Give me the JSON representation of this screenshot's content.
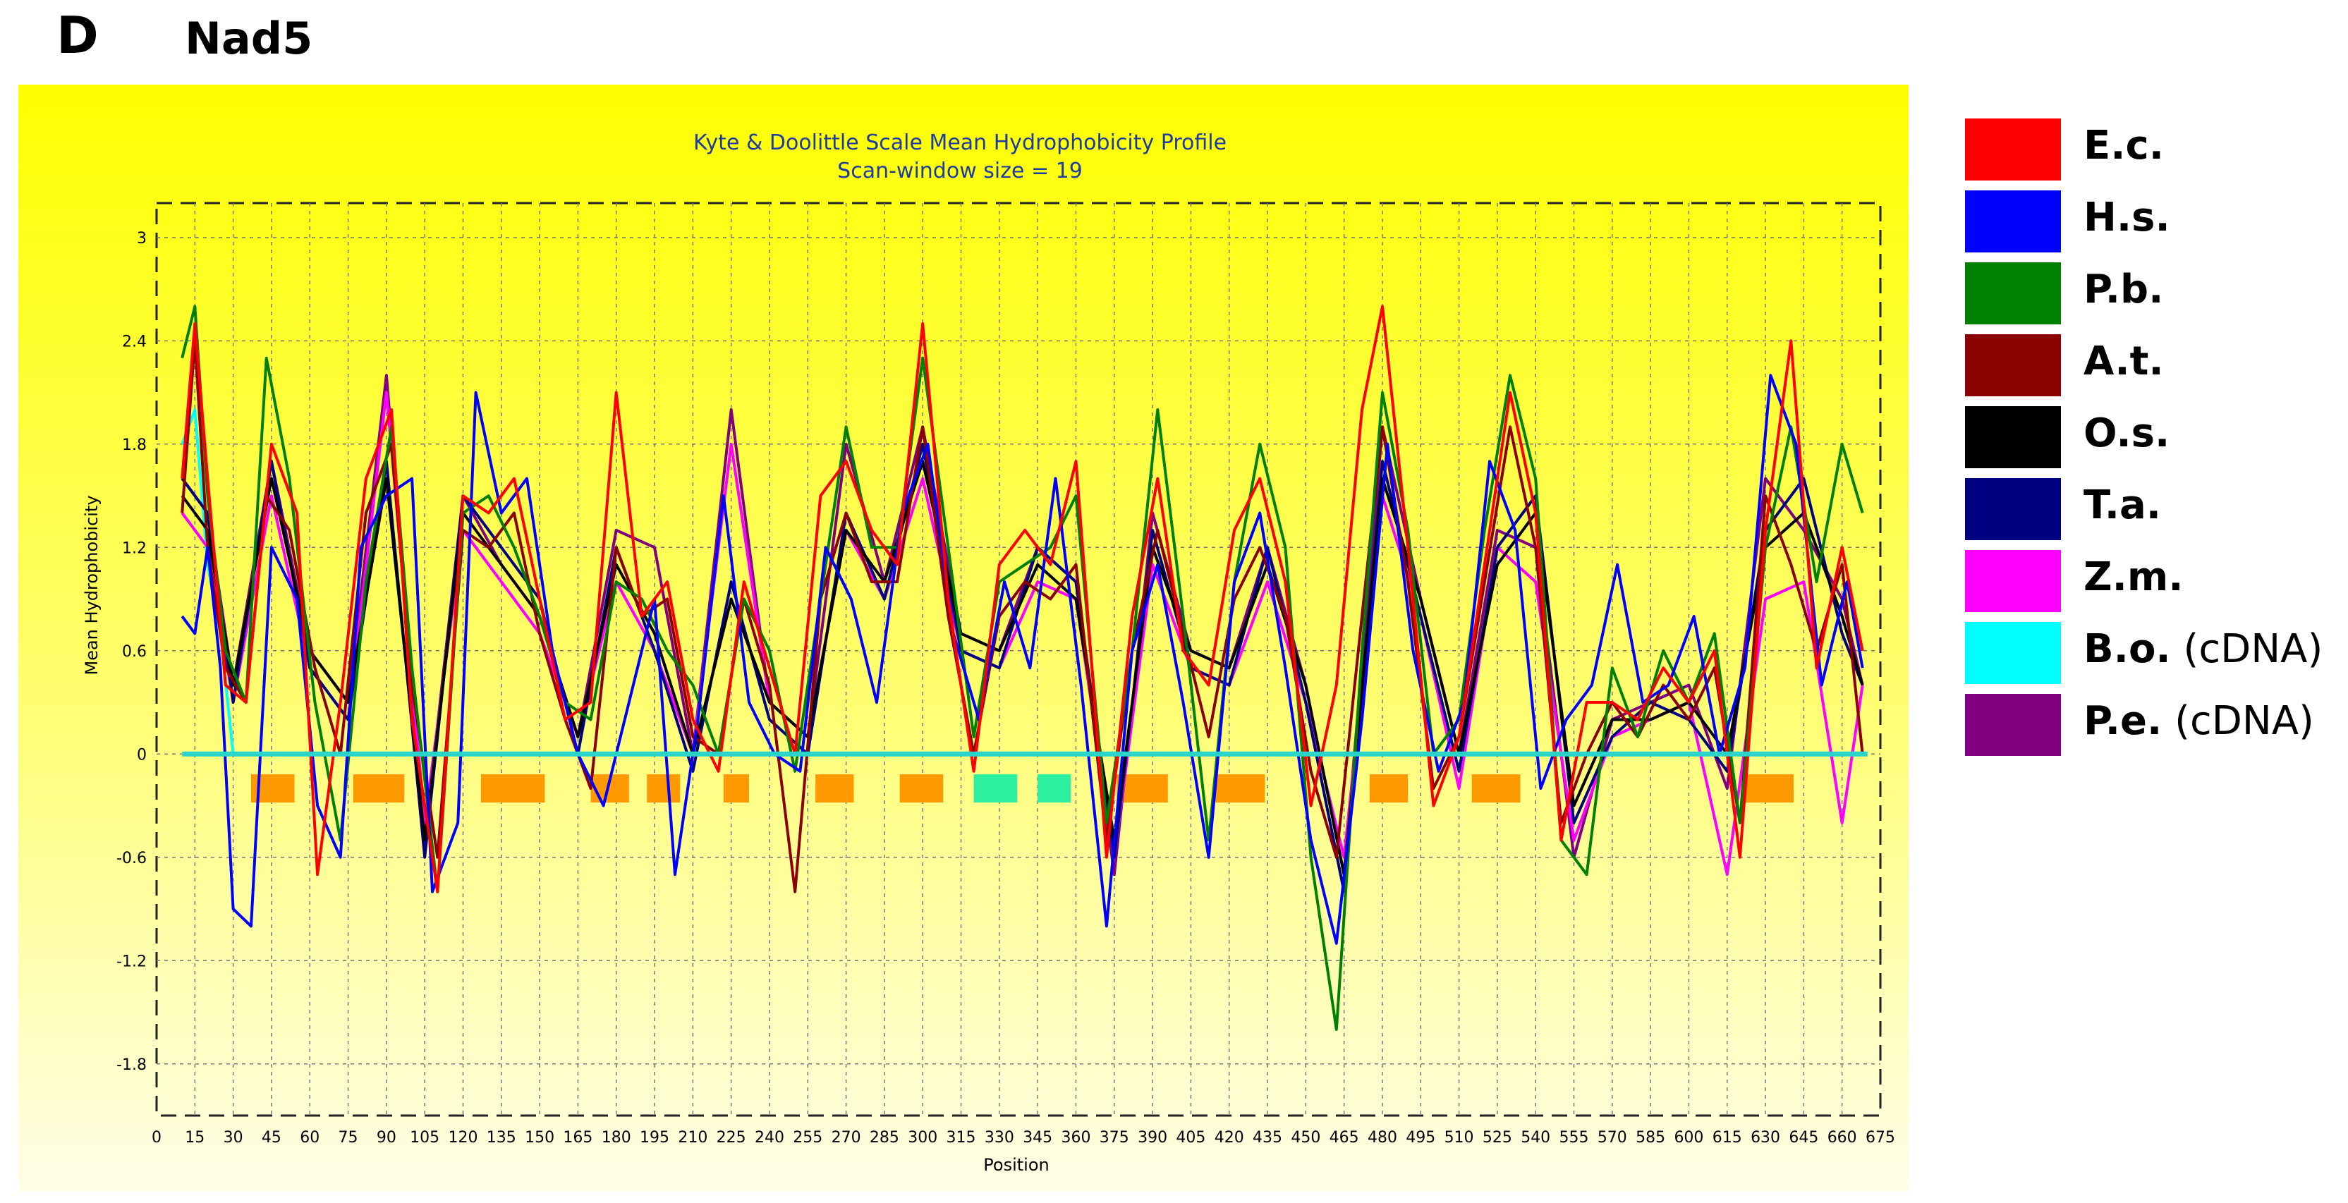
{
  "panel": {
    "letter": "D",
    "title": "Nad5"
  },
  "legend": [
    {
      "abbr": "E.c.",
      "note": "",
      "color": "#ff0000"
    },
    {
      "abbr": "H.s.",
      "note": "",
      "color": "#0000ff"
    },
    {
      "abbr": "P.b.",
      "note": "",
      "color": "#008000"
    },
    {
      "abbr": "A.t.",
      "note": "",
      "color": "#8b0000"
    },
    {
      "abbr": "O.s.",
      "note": "",
      "color": "#000000"
    },
    {
      "abbr": "T.a.",
      "note": "",
      "color": "#000080"
    },
    {
      "abbr": "Z.m.",
      "note": "",
      "color": "#ff00ff"
    },
    {
      "abbr": "B.o.",
      "note": "(cDNA)",
      "color": "#00ffff"
    },
    {
      "abbr": "P.e.",
      "note": "(cDNA)",
      "color": "#800080"
    }
  ],
  "chart_data": {
    "type": "line",
    "title": "Kyte & Doolittle Scale Mean Hydrophobicity Profile",
    "subtitle": "Scan-window size = 19",
    "xlabel": "Position",
    "ylabel": "Mean Hydrophobicity",
    "xlim": [
      0,
      675
    ],
    "ylim": [
      -2.1,
      3.2
    ],
    "xticks": [
      0,
      15,
      30,
      45,
      60,
      75,
      90,
      105,
      120,
      135,
      150,
      165,
      180,
      195,
      210,
      225,
      240,
      255,
      270,
      285,
      300,
      315,
      330,
      345,
      360,
      375,
      390,
      405,
      420,
      435,
      450,
      465,
      480,
      495,
      510,
      525,
      540,
      555,
      570,
      585,
      600,
      615,
      630,
      645,
      660,
      675
    ],
    "yticks": [
      -1.8,
      -1.2,
      -0.6,
      0,
      0.6,
      1.2,
      1.8,
      2.4,
      3
    ],
    "ytick_labels": [
      "-1.8",
      "-1.2",
      "-0.6",
      "0",
      "0.6",
      "1.2",
      "1.8",
      "2.4",
      "3"
    ],
    "grid": true,
    "zero_line_color": "#2bd4c8",
    "series": [
      {
        "name": "E.c.",
        "color": "#ff0000",
        "x": [
          10,
          15,
          20,
          27,
          35,
          45,
          55,
          63,
          72,
          82,
          92,
          100,
          110,
          120,
          130,
          140,
          150,
          160,
          170,
          180,
          190,
          200,
          210,
          220,
          230,
          240,
          250,
          260,
          270,
          280,
          290,
          300,
          310,
          320,
          330,
          340,
          350,
          360,
          372,
          382,
          392,
          402,
          412,
          422,
          432,
          442,
          452,
          462,
          472,
          480,
          490,
          500,
          510,
          520,
          530,
          540,
          550,
          560,
          570,
          580,
          590,
          600,
          610,
          620,
          630,
          640,
          650,
          660,
          668
        ],
        "y": [
          1.6,
          2.5,
          1.6,
          0.4,
          0.3,
          1.8,
          1.4,
          -0.7,
          0.3,
          1.6,
          2.0,
          0.2,
          -0.8,
          1.5,
          1.4,
          1.6,
          0.9,
          0.2,
          0.3,
          2.1,
          0.8,
          1.0,
          0.2,
          -0.1,
          1.0,
          0.5,
          0.0,
          1.5,
          1.7,
          1.3,
          1.1,
          2.5,
          0.9,
          -0.1,
          1.1,
          1.3,
          1.1,
          1.7,
          -0.6,
          0.8,
          1.6,
          0.6,
          0.4,
          1.3,
          1.6,
          1.0,
          -0.3,
          0.4,
          2.0,
          2.6,
          1.2,
          -0.3,
          0.1,
          1.1,
          2.1,
          1.4,
          -0.5,
          0.3,
          0.3,
          0.2,
          0.5,
          0.3,
          0.6,
          -0.6,
          1.3,
          2.4,
          0.5,
          1.2,
          0.6
        ]
      },
      {
        "name": "H.s.",
        "color": "#0000ff",
        "x": [
          10,
          15,
          20,
          25,
          30,
          37,
          45,
          55,
          63,
          72,
          80,
          90,
          100,
          108,
          118,
          125,
          135,
          145,
          155,
          165,
          175,
          185,
          195,
          203,
          212,
          222,
          232,
          242,
          252,
          262,
          272,
          282,
          292,
          302,
          312,
          322,
          332,
          342,
          352,
          362,
          372,
          382,
          392,
          402,
          412,
          422,
          432,
          442,
          452,
          462,
          472,
          482,
          492,
          502,
          512,
          522,
          532,
          542,
          552,
          562,
          572,
          582,
          592,
          602,
          612,
          622,
          632,
          642,
          652,
          662,
          668
        ],
        "y": [
          0.8,
          0.7,
          1.2,
          0.5,
          -0.9,
          -1.0,
          1.2,
          0.9,
          -0.3,
          -0.6,
          1.2,
          1.5,
          1.6,
          -0.8,
          -0.4,
          2.1,
          1.4,
          1.6,
          0.6,
          0.0,
          -0.3,
          0.3,
          0.9,
          -0.7,
          0.2,
          1.5,
          0.3,
          0.0,
          -0.1,
          1.2,
          0.9,
          0.3,
          1.4,
          1.8,
          0.7,
          0.2,
          1.0,
          0.5,
          1.6,
          0.4,
          -1.0,
          0.6,
          1.1,
          0.3,
          -0.6,
          1.0,
          1.4,
          0.5,
          -0.5,
          -1.1,
          0.2,
          1.8,
          0.6,
          -0.1,
          0.3,
          1.7,
          1.3,
          -0.2,
          0.2,
          0.4,
          1.1,
          0.3,
          0.4,
          0.8,
          0.0,
          0.5,
          2.2,
          1.8,
          0.4,
          1.0,
          0.5
        ]
      },
      {
        "name": "P.b.",
        "color": "#008000",
        "x": [
          10,
          15,
          20,
          27,
          35,
          43,
          52,
          62,
          72,
          82,
          92,
          100,
          110,
          120,
          130,
          140,
          150,
          160,
          170,
          180,
          190,
          200,
          210,
          220,
          230,
          240,
          250,
          260,
          270,
          280,
          290,
          300,
          310,
          320,
          330,
          340,
          350,
          360,
          372,
          382,
          392,
          402,
          412,
          422,
          432,
          442,
          452,
          462,
          472,
          480,
          490,
          500,
          510,
          520,
          530,
          540,
          550,
          560,
          570,
          580,
          590,
          600,
          610,
          620,
          630,
          640,
          650,
          660,
          668
        ],
        "y": [
          2.3,
          2.6,
          1.5,
          0.6,
          0.3,
          2.3,
          1.6,
          0.3,
          -0.5,
          1.0,
          1.9,
          0.5,
          -0.8,
          1.4,
          1.5,
          1.2,
          0.8,
          0.3,
          0.2,
          1.0,
          0.9,
          0.6,
          0.4,
          0.0,
          0.9,
          0.6,
          -0.1,
          0.9,
          1.9,
          1.2,
          1.2,
          2.3,
          1.2,
          0.1,
          1.0,
          1.1,
          1.2,
          1.5,
          -0.4,
          0.6,
          2.0,
          0.8,
          -0.5,
          1.0,
          1.8,
          1.2,
          -0.6,
          -1.6,
          0.6,
          2.1,
          1.3,
          0.0,
          0.2,
          1.3,
          2.2,
          1.6,
          -0.5,
          -0.7,
          0.5,
          0.1,
          0.6,
          0.3,
          0.7,
          -0.4,
          1.2,
          1.9,
          1.0,
          1.8,
          1.4
        ]
      },
      {
        "name": "A.t.",
        "color": "#8b0000",
        "x": [
          10,
          15,
          20,
          27,
          35,
          43,
          52,
          62,
          72,
          82,
          92,
          100,
          110,
          120,
          130,
          140,
          150,
          160,
          170,
          180,
          190,
          200,
          210,
          220,
          230,
          240,
          250,
          260,
          270,
          280,
          290,
          300,
          310,
          320,
          330,
          340,
          350,
          360,
          372,
          382,
          392,
          402,
          412,
          422,
          432,
          442,
          452,
          462,
          472,
          480,
          490,
          500,
          510,
          520,
          530,
          540,
          550,
          560,
          570,
          580,
          590,
          600,
          610,
          620,
          630,
          640,
          650,
          660,
          668
        ],
        "y": [
          1.4,
          2.4,
          1.2,
          0.5,
          0.3,
          1.5,
          1.3,
          0.5,
          0.0,
          1.4,
          1.8,
          0.4,
          -0.6,
          1.3,
          1.2,
          1.4,
          0.7,
          0.2,
          -0.2,
          1.2,
          0.8,
          0.9,
          0.1,
          0.0,
          0.9,
          0.4,
          -0.8,
          0.9,
          1.4,
          1.0,
          1.0,
          1.9,
          0.8,
          0.0,
          0.8,
          1.0,
          0.9,
          1.1,
          -0.5,
          0.6,
          1.3,
          0.7,
          0.1,
          0.9,
          1.2,
          0.8,
          -0.1,
          -0.6,
          0.8,
          1.9,
          1.0,
          -0.2,
          0.1,
          1.0,
          1.9,
          1.2,
          -0.4,
          0.0,
          0.3,
          0.1,
          0.4,
          0.2,
          0.5,
          -0.4,
          1.5,
          1.1,
          0.6,
          1.1,
          0.0
        ]
      },
      {
        "name": "O.s.",
        "color": "#000000",
        "x": [
          10,
          20,
          30,
          45,
          60,
          75,
          90,
          105,
          120,
          135,
          150,
          165,
          180,
          195,
          210,
          225,
          240,
          255,
          270,
          285,
          300,
          315,
          330,
          345,
          360,
          375,
          390,
          405,
          420,
          435,
          450,
          465,
          480,
          495,
          510,
          525,
          540,
          555,
          570,
          585,
          600,
          615,
          630,
          645,
          660,
          668
        ],
        "y": [
          1.5,
          1.3,
          0.4,
          1.6,
          0.6,
          0.3,
          1.6,
          -0.5,
          1.4,
          1.1,
          0.8,
          0.1,
          1.1,
          0.7,
          0.0,
          0.9,
          0.3,
          0.1,
          1.3,
          1.0,
          1.7,
          0.7,
          0.6,
          1.1,
          0.9,
          -0.5,
          1.2,
          0.6,
          0.5,
          1.1,
          0.4,
          -0.7,
          1.6,
          0.9,
          0.0,
          1.1,
          1.4,
          -0.3,
          0.2,
          0.2,
          0.3,
          0.0,
          1.2,
          1.4,
          0.8,
          0.4
        ]
      },
      {
        "name": "T.a.",
        "color": "#000080",
        "x": [
          10,
          20,
          30,
          45,
          60,
          75,
          90,
          105,
          120,
          135,
          150,
          165,
          180,
          195,
          210,
          225,
          240,
          255,
          270,
          285,
          300,
          315,
          330,
          345,
          360,
          375,
          390,
          405,
          420,
          435,
          450,
          465,
          480,
          495,
          510,
          525,
          540,
          555,
          570,
          585,
          600,
          615,
          630,
          645,
          660,
          668
        ],
        "y": [
          1.6,
          1.4,
          0.3,
          1.7,
          0.5,
          0.2,
          1.7,
          -0.6,
          1.5,
          1.2,
          0.9,
          0.0,
          1.2,
          0.6,
          -0.1,
          1.0,
          0.2,
          0.0,
          1.4,
          0.9,
          1.8,
          0.6,
          0.5,
          1.2,
          1.0,
          -0.6,
          1.3,
          0.5,
          0.4,
          1.2,
          0.3,
          -0.8,
          1.7,
          0.8,
          -0.1,
          1.2,
          1.5,
          -0.4,
          0.1,
          0.3,
          0.2,
          -0.1,
          1.3,
          1.6,
          0.7,
          0.4
        ]
      },
      {
        "name": "Z.m.",
        "color": "#ff00ff",
        "x": [
          10,
          20,
          30,
          45,
          60,
          75,
          90,
          105,
          120,
          135,
          150,
          165,
          180,
          195,
          210,
          225,
          240,
          255,
          270,
          285,
          300,
          315,
          330,
          345,
          360,
          375,
          390,
          405,
          420,
          435,
          450,
          465,
          480,
          495,
          510,
          525,
          540,
          555,
          570,
          585,
          600,
          615,
          630,
          645,
          660,
          668
        ],
        "y": [
          1.4,
          1.2,
          0.3,
          1.5,
          0.5,
          0.2,
          2.1,
          -0.4,
          1.3,
          1.0,
          0.7,
          0.1,
          1.0,
          0.6,
          0.0,
          1.8,
          0.3,
          0.1,
          1.3,
          0.9,
          1.6,
          0.6,
          0.5,
          1.0,
          0.9,
          -0.6,
          1.1,
          0.5,
          0.4,
          1.0,
          0.3,
          -0.6,
          1.5,
          0.8,
          -0.2,
          1.2,
          1.0,
          -0.5,
          0.1,
          0.2,
          0.3,
          -0.7,
          0.9,
          1.0,
          -0.4,
          0.4
        ]
      },
      {
        "name": "B.o.",
        "color": "#00ffff",
        "x": [
          10,
          15,
          20,
          25,
          30
        ],
        "y": [
          1.8,
          2.0,
          1.1,
          0.7,
          0.0
        ]
      },
      {
        "name": "P.e.",
        "color": "#800080",
        "x": [
          10,
          20,
          30,
          45,
          60,
          75,
          90,
          105,
          120,
          135,
          150,
          165,
          180,
          195,
          210,
          225,
          240,
          255,
          270,
          285,
          300,
          315,
          330,
          345,
          360,
          375,
          390,
          405,
          420,
          435,
          450,
          465,
          480,
          495,
          510,
          525,
          540,
          555,
          570,
          585,
          600,
          615,
          630,
          645,
          660,
          668
        ],
        "y": [
          1.6,
          1.4,
          0.4,
          1.7,
          0.6,
          0.3,
          2.2,
          -0.5,
          1.5,
          1.1,
          0.8,
          0.1,
          1.3,
          1.2,
          0.0,
          2.0,
          0.3,
          0.1,
          1.8,
          1.0,
          1.9,
          0.7,
          0.6,
          1.2,
          1.0,
          -0.7,
          1.4,
          0.6,
          0.5,
          1.2,
          0.4,
          -0.7,
          1.9,
          0.9,
          0.0,
          1.3,
          1.2,
          -0.6,
          0.2,
          0.3,
          0.4,
          -0.2,
          1.6,
          1.3,
          0.9,
          0.4
        ]
      }
    ],
    "tm_segments": {
      "y": -0.2,
      "items": [
        {
          "start": 37,
          "end": 54,
          "color": "#ff9900"
        },
        {
          "start": 77,
          "end": 97,
          "color": "#ff9900"
        },
        {
          "start": 127,
          "end": 152,
          "color": "#ff9900"
        },
        {
          "start": 170,
          "end": 185,
          "color": "#ff9900"
        },
        {
          "start": 192,
          "end": 205,
          "color": "#ff9900"
        },
        {
          "start": 222,
          "end": 232,
          "color": "#ff9900"
        },
        {
          "start": 258,
          "end": 273,
          "color": "#ff9900"
        },
        {
          "start": 291,
          "end": 308,
          "color": "#ff9900"
        },
        {
          "start": 320,
          "end": 337,
          "color": "#2cf0a0"
        },
        {
          "start": 345,
          "end": 358,
          "color": "#2cf0a0"
        },
        {
          "start": 376,
          "end": 396,
          "color": "#ff9900"
        },
        {
          "start": 414,
          "end": 434,
          "color": "#ff9900"
        },
        {
          "start": 475,
          "end": 490,
          "color": "#ff9900"
        },
        {
          "start": 515,
          "end": 534,
          "color": "#ff9900"
        },
        {
          "start": 622,
          "end": 641,
          "color": "#ff9900"
        }
      ]
    }
  }
}
